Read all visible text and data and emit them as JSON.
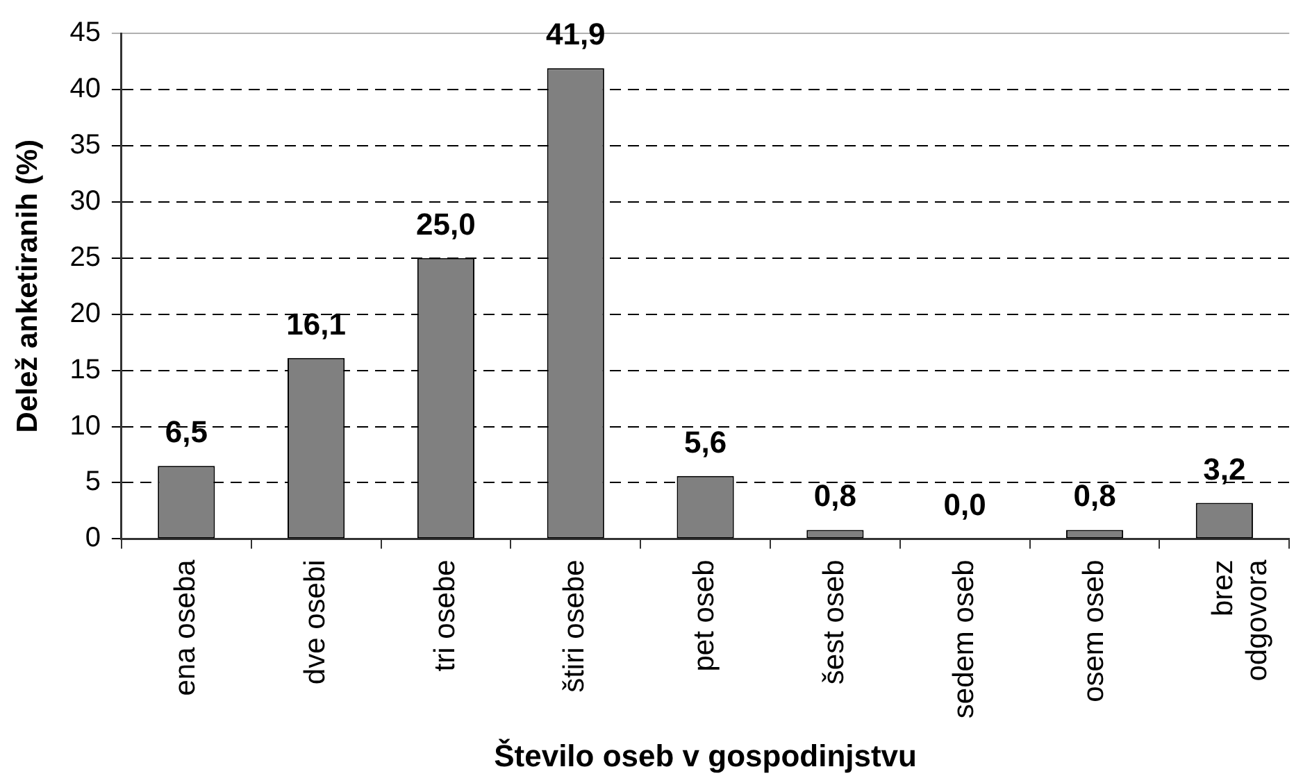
{
  "chart_data": {
    "type": "bar",
    "xlabel": "Število oseb v gospodinjstvu",
    "ylabel": "Delež anketiranih (%)",
    "categories": [
      "ena oseba",
      "dve osebi",
      "tri osebe",
      "štiri osebe",
      "pet oseb",
      "šest oseb",
      "sedem oseb",
      "osem oseb",
      "brez odgovora"
    ],
    "values": [
      6.5,
      16.1,
      25.0,
      41.9,
      5.6,
      0.8,
      0.0,
      0.8,
      3.2
    ],
    "value_labels": [
      "6,5",
      "16,1",
      "25,0",
      "41,9",
      "5,6",
      "0,8",
      "0,0",
      "0,8",
      "3,2"
    ],
    "color": "#808080",
    "ylim": [
      0,
      45
    ],
    "yticks": [
      0,
      5,
      10,
      15,
      20,
      25,
      30,
      35,
      40,
      45
    ],
    "grid": "y"
  }
}
